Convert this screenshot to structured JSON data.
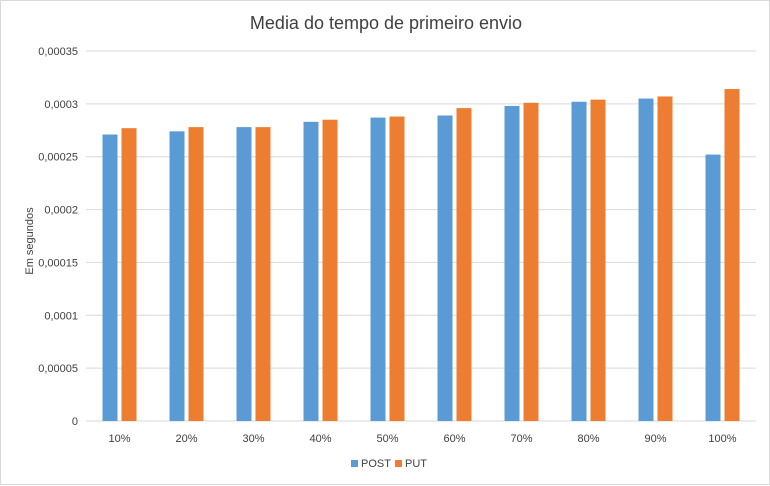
{
  "chart_data": {
    "type": "bar",
    "title": "Media do tempo de primeiro envio",
    "xlabel": "",
    "ylabel": "Em segundos",
    "categories": [
      "10%",
      "20%",
      "30%",
      "40%",
      "50%",
      "60%",
      "70%",
      "80%",
      "90%",
      "100%"
    ],
    "series": [
      {
        "name": "POST",
        "color": "#5b9bd5",
        "values": [
          0.000271,
          0.000274,
          0.000278,
          0.000283,
          0.000287,
          0.000289,
          0.000298,
          0.000302,
          0.000305,
          0.000252
        ]
      },
      {
        "name": "PUT",
        "color": "#ed7d31",
        "values": [
          0.000277,
          0.000278,
          0.000278,
          0.000285,
          0.000288,
          0.000296,
          0.000301,
          0.000304,
          0.000307,
          0.000314
        ]
      }
    ],
    "ylim": [
      0,
      0.00035
    ],
    "yticks": [
      "0",
      "0,00005",
      "0,0001",
      "0,00015",
      "0,0002",
      "0,00025",
      "0,0003",
      "0,00035"
    ],
    "grid": true,
    "legend": "bottom"
  }
}
